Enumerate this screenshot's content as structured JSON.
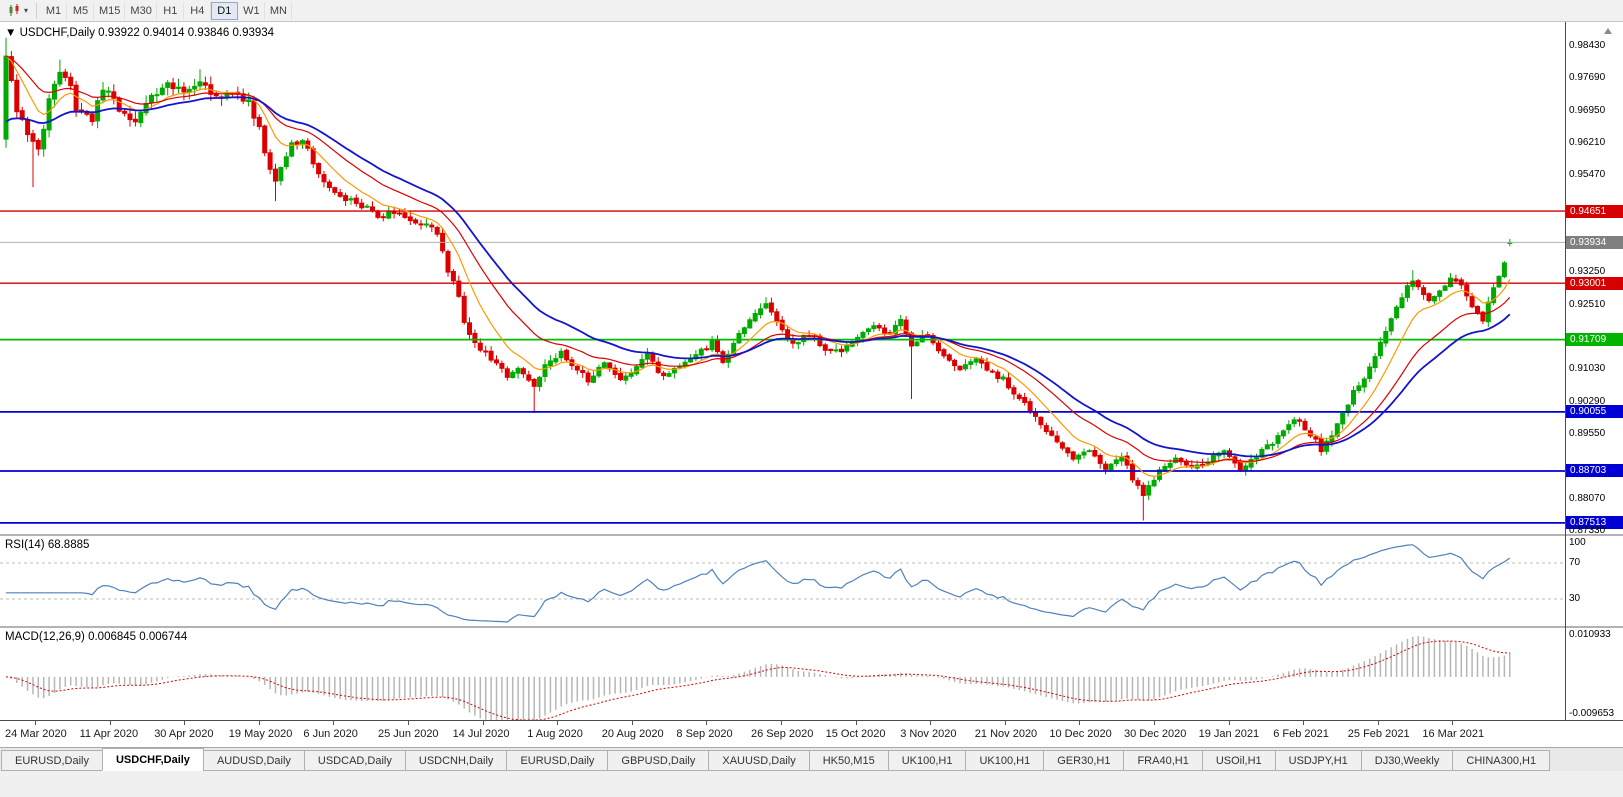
{
  "toolbar": {
    "dropdown_icon": "▾",
    "timeframes": [
      {
        "label": "M1",
        "active": false
      },
      {
        "label": "M5",
        "active": false
      },
      {
        "label": "M15",
        "active": false
      },
      {
        "label": "M30",
        "active": false
      },
      {
        "label": "H1",
        "active": false
      },
      {
        "label": "H4",
        "active": false
      },
      {
        "label": "D1",
        "active": true
      },
      {
        "label": "W1",
        "active": false
      },
      {
        "label": "MN",
        "active": false
      }
    ]
  },
  "chart": {
    "title_arrow": "▼",
    "title": "USDCHF,Daily 0.93922 0.94014 0.93846 0.93934",
    "symbol": "USDCHF",
    "period": "Daily",
    "open": "0.93922",
    "high": "0.94014",
    "low": "0.93846",
    "close": "0.93934",
    "current_price": "0.93934",
    "horizontal_lines": [
      {
        "value": 0.94651,
        "label": "0.94651",
        "color": "red"
      },
      {
        "value": 0.93001,
        "label": "0.93001",
        "color": "red"
      },
      {
        "value": 0.91709,
        "label": "0.91709",
        "color": "green"
      },
      {
        "value": 0.90055,
        "label": "0.90055",
        "color": "blue"
      },
      {
        "value": 0.88703,
        "label": "0.88703",
        "color": "blue"
      },
      {
        "value": 0.87513,
        "label": "0.87513",
        "color": "blue"
      }
    ],
    "price_axis": {
      "grid_values": [
        0.9843,
        0.9769,
        0.9695,
        0.9621,
        0.9547,
        0.9473,
        0.9399,
        0.9325,
        0.9251,
        0.9177,
        0.9103,
        0.9029,
        0.8955,
        0.8881,
        0.8807,
        0.8733
      ],
      "grid_labels": [
        "0.98430",
        "0.97690",
        "0.96950",
        "0.96210",
        "0.95470",
        "0.94730",
        "0.93990",
        "0.93250",
        "0.92510",
        "0.91770",
        "0.91030",
        "0.90290",
        "0.89550",
        "0.88810",
        "0.88070",
        "0.87330"
      ]
    },
    "colors": {
      "up": "#00aa00",
      "down": "#dd0000",
      "ma_orange": "#ff9900",
      "ma_red": "#dd0000",
      "ma_blue": "#1414cc",
      "level_red": "#d60000",
      "level_green": "#00bb00",
      "level_blue": "#0000d6",
      "current_line": "#b0b0b0",
      "badge_gray": "#808080",
      "rsi_line": "#4f81bd",
      "macd_hist": "#b6b6b6",
      "macd_signal": "#dd0000"
    }
  },
  "rsi": {
    "label": "RSI(14) 68.8885",
    "name": "RSI",
    "period": 14,
    "value": "68.8885",
    "levels": [
      100,
      70,
      30
    ],
    "level_labels": [
      "100",
      "70",
      "30"
    ]
  },
  "macd": {
    "label": "MACD(12,26,9) 0.006845 0.006744",
    "fast": 12,
    "slow": 26,
    "signal": 9,
    "macd_value": "0.006845",
    "signal_value": "0.006744",
    "axis_max": 0.010933,
    "axis_min": -0.009653,
    "axis_max_label": "0.010933",
    "axis_min_label": "-0.009653"
  },
  "date_axis": {
    "labels": [
      "24 Mar 2020",
      "11 Apr 2020",
      "30 Apr 2020",
      "19 May 2020",
      "6 Jun 2020",
      "25 Jun 2020",
      "14 Jul 2020",
      "1 Aug 2020",
      "20 Aug 2020",
      "8 Sep 2020",
      "26 Sep 2020",
      "15 Oct 2020",
      "3 Nov 2020",
      "21 Nov 2020",
      "10 Dec 2020",
      "30 Dec 2020",
      "19 Jan 2021",
      "6 Feb 2021",
      "25 Feb 2021",
      "16 Mar 2021"
    ]
  },
  "tabs": [
    {
      "label": "EURUSD,Daily",
      "active": false
    },
    {
      "label": "USDCHF,Daily",
      "active": true
    },
    {
      "label": "AUDUSD,Daily",
      "active": false
    },
    {
      "label": "USDCAD,Daily",
      "active": false
    },
    {
      "label": "USDCNH,Daily",
      "active": false
    },
    {
      "label": "EURUSD,Daily",
      "active": false
    },
    {
      "label": "GBPUSD,Daily",
      "active": false
    },
    {
      "label": "XAUUSD,Daily",
      "active": false
    },
    {
      "label": "HK50,M15",
      "active": false
    },
    {
      "label": "UK100,H1",
      "active": false
    },
    {
      "label": "UK100,H1",
      "active": false
    },
    {
      "label": "GER30,H1",
      "active": false
    },
    {
      "label": "FRA40,H1",
      "active": false
    },
    {
      "label": "USOil,H1",
      "active": false
    },
    {
      "label": "USDJPY,H1",
      "active": false
    },
    {
      "label": "DJ30,Weekly",
      "active": false
    },
    {
      "label": "CHINA300,H1",
      "active": false
    }
  ],
  "chart_data": {
    "type": "candlestick",
    "symbol": "USDCHF",
    "timeframe": "Daily",
    "bars": 280,
    "x_first_label": "24 Mar 2020",
    "x_last_label": "16 Mar 2021",
    "y_range": [
      0.8726,
      0.9898
    ],
    "first_candle": {
      "open": 0.963,
      "high": 0.9862,
      "low": 0.961,
      "close": 0.982
    },
    "last_candle": {
      "open": 0.93922,
      "high": 0.94014,
      "low": 0.93846,
      "close": 0.93934
    },
    "close_path": [
      [
        0,
        0.982
      ],
      [
        2,
        0.97
      ],
      [
        4,
        0.964
      ],
      [
        6,
        0.96
      ],
      [
        8,
        0.9725
      ],
      [
        10,
        0.979
      ],
      [
        12,
        0.9755
      ],
      [
        13,
        0.97
      ],
      [
        16,
        0.968
      ],
      [
        18,
        0.9745
      ],
      [
        21,
        0.97
      ],
      [
        24,
        0.967
      ],
      [
        27,
        0.972
      ],
      [
        30,
        0.9765
      ],
      [
        33,
        0.973
      ],
      [
        36,
        0.977
      ],
      [
        39,
        0.972
      ],
      [
        42,
        0.9745
      ],
      [
        45,
        0.971
      ],
      [
        47,
        0.965
      ],
      [
        49,
        0.956
      ],
      [
        50,
        0.953
      ],
      [
        53,
        0.962
      ],
      [
        55,
        0.9625
      ],
      [
        59,
        0.9535
      ],
      [
        62,
        0.95
      ],
      [
        66,
        0.948
      ],
      [
        69,
        0.945
      ],
      [
        72,
        0.9465
      ],
      [
        76,
        0.944
      ],
      [
        79,
        0.943
      ],
      [
        81,
        0.938
      ],
      [
        82,
        0.933
      ],
      [
        84,
        0.927
      ],
      [
        85,
        0.921
      ],
      [
        87,
        0.916
      ],
      [
        90,
        0.913
      ],
      [
        93,
        0.909
      ],
      [
        95,
        0.911
      ],
      [
        98,
        0.906
      ],
      [
        100,
        0.911
      ],
      [
        103,
        0.914
      ],
      [
        106,
        0.9105
      ],
      [
        108,
        0.9075
      ],
      [
        111,
        0.912
      ],
      [
        114,
        0.908
      ],
      [
        117,
        0.9105
      ],
      [
        119,
        0.9135
      ],
      [
        122,
        0.9085
      ],
      [
        125,
        0.911
      ],
      [
        128,
        0.9135
      ],
      [
        131,
        0.9165
      ],
      [
        133,
        0.912
      ],
      [
        136,
        0.918
      ],
      [
        139,
        0.923
      ],
      [
        141,
        0.925
      ],
      [
        144,
        0.9195
      ],
      [
        146,
        0.916
      ],
      [
        149,
        0.9185
      ],
      [
        152,
        0.915
      ],
      [
        155,
        0.9145
      ],
      [
        158,
        0.9175
      ],
      [
        161,
        0.9205
      ],
      [
        164,
        0.9185
      ],
      [
        166,
        0.922
      ],
      [
        168,
        0.9155
      ],
      [
        171,
        0.9185
      ],
      [
        174,
        0.913
      ],
      [
        177,
        0.9105
      ],
      [
        180,
        0.9125
      ],
      [
        182,
        0.91
      ],
      [
        185,
        0.908
      ],
      [
        188,
        0.9035
      ],
      [
        192,
        0.898
      ],
      [
        196,
        0.8925
      ],
      [
        198,
        0.8895
      ],
      [
        201,
        0.892
      ],
      [
        204,
        0.888
      ],
      [
        207,
        0.8905
      ],
      [
        209,
        0.8855
      ],
      [
        211,
        0.8815
      ],
      [
        214,
        0.887
      ],
      [
        217,
        0.8905
      ],
      [
        220,
        0.8875
      ],
      [
        223,
        0.8895
      ],
      [
        226,
        0.892
      ],
      [
        229,
        0.887
      ],
      [
        232,
        0.8905
      ],
      [
        235,
        0.8935
      ],
      [
        237,
        0.896
      ],
      [
        239,
        0.899
      ],
      [
        242,
        0.8955
      ],
      [
        244,
        0.892
      ],
      [
        246,
        0.8955
      ],
      [
        248,
        0.9
      ],
      [
        250,
        0.905
      ],
      [
        253,
        0.9105
      ],
      [
        255,
        0.916
      ],
      [
        257,
        0.922
      ],
      [
        260,
        0.929
      ],
      [
        261,
        0.931
      ],
      [
        264,
        0.926
      ],
      [
        266,
        0.9285
      ],
      [
        268,
        0.931
      ],
      [
        270,
        0.93
      ],
      [
        272,
        0.924
      ],
      [
        274,
        0.9215
      ],
      [
        276,
        0.929
      ],
      [
        278,
        0.935
      ],
      [
        279,
        0.93934
      ]
    ],
    "spike_lows": [
      [
        5,
        0.952
      ],
      [
        50,
        0.9488
      ],
      [
        98,
        0.9003
      ],
      [
        168,
        0.9035
      ],
      [
        211,
        0.8757
      ]
    ],
    "spike_highs": [
      [
        10,
        0.9812
      ],
      [
        36,
        0.979
      ],
      [
        141,
        0.9268
      ],
      [
        261,
        0.933
      ]
    ],
    "moving_averages": [
      {
        "color": "orange",
        "period": 9,
        "type": "ema"
      },
      {
        "color": "red",
        "period": 20,
        "type": "ema"
      },
      {
        "color": "blue",
        "period": 30,
        "type": "ema",
        "seed": 0.966
      }
    ],
    "indicators": [
      {
        "name": "RSI",
        "period": 14,
        "current": 68.8885
      },
      {
        "name": "MACD",
        "fast": 12,
        "slow": 26,
        "signal": 9,
        "current_macd": 0.006845,
        "current_signal": 0.006744
      }
    ]
  }
}
